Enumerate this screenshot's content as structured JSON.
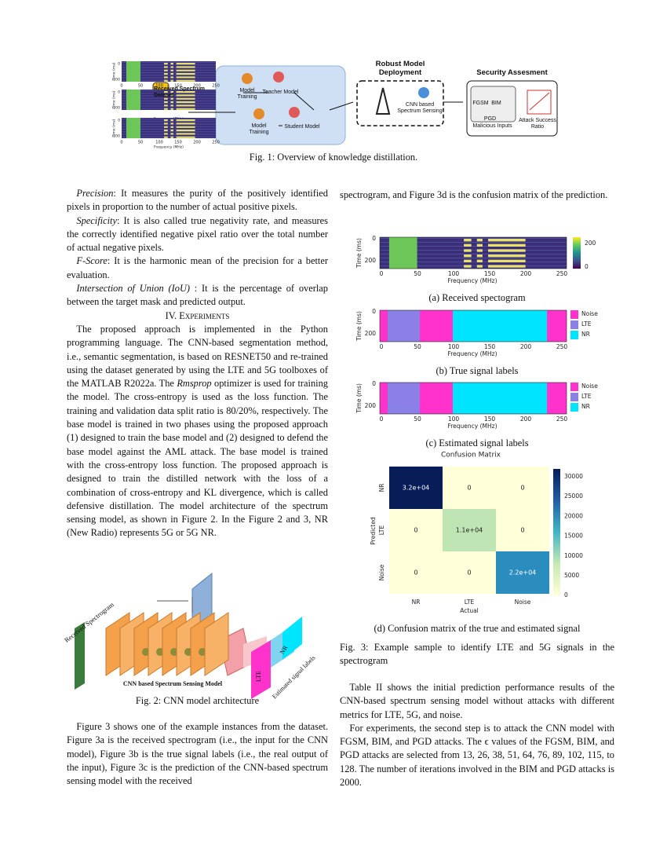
{
  "fig1": {
    "time_label": "Time (ms)",
    "freq_label": "Frequency (MHz)",
    "yticks": [
      "0",
      "200"
    ],
    "xticks": [
      "0",
      "50",
      "100",
      "150",
      "200",
      "250"
    ],
    "dataset": "Received Spectrum Dataset",
    "teacher_training": "Model Training",
    "teacher": "Teacher Model",
    "student_training": "Model Training",
    "student": "Student Model",
    "deploy_title": "Robust Model Deployment",
    "deploy_model": "CNN based Spectrum Sensing",
    "security_title": "Security Assesment",
    "fgsm": "FGSM",
    "bim": "BIM",
    "pgd": "PGD",
    "inputs": "Malicious Inputs",
    "ratio": "Attack Success Ratio",
    "caption": "Fig. 1: Overview of knowledge distillation."
  },
  "left": {
    "paragraphs": [
      {
        "lead": "Precision",
        "text": ": It measures the purity of the positively identified pixels in proportion to the number of actual positive pixels."
      },
      {
        "lead": "Specificity",
        "text": ": It is also called true negativity rate, and measures the correctly identified negative pixel ratio over the total number of actual negative pixels."
      },
      {
        "lead": "F-Score",
        "text": ": It is the harmonic mean of the precision for a better evaluation."
      },
      {
        "lead": "Intersection of Union (IoU)",
        "text": " : It is the percentage of overlap between the target mask and predicted output."
      }
    ],
    "heading": "IV. Experiments",
    "experiments": [
      "The proposed approach is implemented in the Python programming language. The CNN-based segmentation method, i.e., semantic segmentation, is based on RESNET50 and re-trained using the dataset generated by using the LTE and 5G toolboxes of the MATLAB R2022a. The ",
      "Rmsprop",
      " optimizer is used for training the model. The cross-entropy is used as the loss function. The training and validation data split ratio is 80/20%, respectively. The base model is trained in two phases using the proposed approach (1) designed to train the base model and (2) designed to defend the base model against the AML attack. The base model is trained with the cross-entropy loss function. The proposed approach is designed to train the distilled network with the loss of a combination of cross-entropy and KL divergence, which is called defensive distillation. The model architecture of the spectrum sensing model, as shown in Figure 2. In the Figure 2 and 3, NR (New Radio) represents 5G or 5G NR."
    ],
    "fig2": {
      "input": "Received Spectrogram",
      "model": "CNN based Spectrum Sensing Model",
      "lte": "LTE",
      "nr": "NR",
      "output": "Estimated signal labels",
      "caption": "Fig. 2: CNN model architecture"
    },
    "figure3_intro": "Figure 3 shows one of the example instances from the dataset. Figure 3a is the received spectrogram (i.e., the input for the CNN model), Figure 3b is the true signal labels (i.e., the real output of the input), Figure 3c is the prediction of the CNN-based spectrum sensing model with the received"
  },
  "right": {
    "continuation": "spectrogram, and Figure 3d is the confusion matrix of the prediction.",
    "fig3": {
      "panels": [
        {
          "ylabel": "Time (ms)",
          "yticks": [
            "0",
            "200"
          ],
          "xticks": [
            "0",
            "50",
            "100",
            "150",
            "200",
            "250"
          ],
          "xlabel": "Frequency (MHz)",
          "colorbar": [
            "200",
            "0"
          ],
          "caption": "(a) Received spectogram"
        },
        {
          "ylabel": "Time (ms)",
          "yticks": [
            "0",
            "200"
          ],
          "xticks": [
            "0",
            "50",
            "100",
            "150",
            "200",
            "250"
          ],
          "xlabel": "Frequency (MHz)",
          "legend": [
            "Noise",
            "LTE",
            "NR"
          ],
          "caption": "(b) True signal labels"
        },
        {
          "ylabel": "Time (ms)",
          "yticks": [
            "0",
            "200"
          ],
          "xticks": [
            "0",
            "50",
            "100",
            "150",
            "200",
            "250"
          ],
          "xlabel": "Frequency (MHz)",
          "legend": [
            "Noise",
            "LTE",
            "NR"
          ],
          "caption": "(c) Estimated signal labels"
        }
      ],
      "confusion": {
        "title": "Confusion Matrix",
        "rows": [
          "NR",
          "LTE",
          "Noise"
        ],
        "cols": [
          "NR",
          "LTE",
          "Noise"
        ],
        "cells": [
          [
            "3.2e+04",
            "0",
            "0"
          ],
          [
            "0",
            "1.1e+04",
            "0"
          ],
          [
            "0",
            "0",
            "2.2e+04"
          ]
        ],
        "ylabel": "Predicted",
        "xlabel": "Actual",
        "colorbar": [
          "30000",
          "25000",
          "20000",
          "15000",
          "10000",
          "5000",
          "0"
        ],
        "caption": "(d) Confusion matrix of the true and estimated signal"
      },
      "caption": "Fig. 3: Example sample to identify LTE and 5G signals in the spectrogram"
    },
    "paragraphs": [
      "Table II shows the initial prediction performance results of the CNN-based spectrum sensing model without attacks with different metrics for LTE, 5G, and noise.",
      "For experiments, the second step is to attack the CNN model with FGSM, BIM, and PGD attacks. The ϵ values of the FGSM, BIM, and PGD attacks are selected from 13, 26, 38, 51, 64, 76, 89, 102, 115, to 128. The number of iterations involved in the BIM and PGD attacks is 2000."
    ]
  }
}
